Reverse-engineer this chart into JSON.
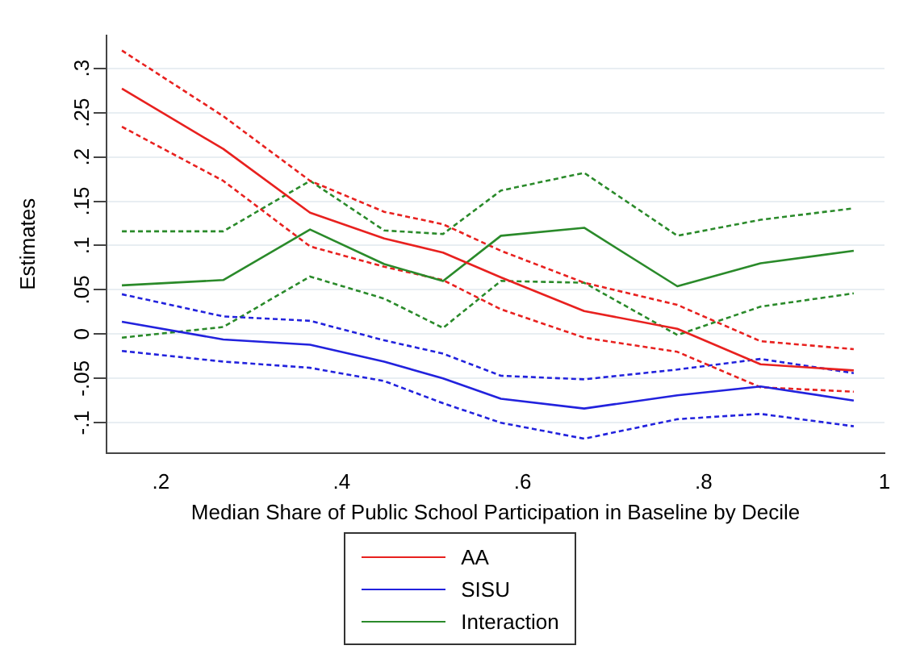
{
  "chart_data": {
    "type": "line",
    "xlabel": "Median Share of Public School Participation in Baseline by Decile",
    "ylabel": "Estimates",
    "x": [
      0.157,
      0.269,
      0.365,
      0.447,
      0.512,
      0.576,
      0.668,
      0.771,
      0.863,
      0.966
    ],
    "series": [
      {
        "name": "AA",
        "color": "#e8211f",
        "values": [
          0.277,
          0.209,
          0.137,
          0.108,
          0.092,
          0.064,
          0.026,
          0.006,
          -0.034,
          -0.041
        ]
      },
      {
        "name": "SISU",
        "color": "#2222dd",
        "values": [
          0.014,
          -0.006,
          -0.012,
          -0.031,
          -0.05,
          -0.073,
          -0.084,
          -0.069,
          -0.059,
          -0.075
        ]
      },
      {
        "name": "Interaction",
        "color": "#2a8a2a",
        "values": [
          0.055,
          0.061,
          0.118,
          0.079,
          0.06,
          0.111,
          0.12,
          0.054,
          0.08,
          0.094
        ]
      },
      {
        "color": "#e8211f",
        "line_style": "dashed",
        "values": [
          0.234,
          0.173,
          0.099,
          0.076,
          0.061,
          0.028,
          -0.004,
          -0.02,
          -0.06,
          -0.065
        ]
      },
      {
        "color": "#e8211f",
        "line_style": "dashed",
        "values": [
          0.32,
          0.246,
          0.173,
          0.138,
          0.124,
          0.094,
          0.058,
          0.033,
          -0.008,
          -0.017
        ]
      },
      {
        "color": "#2222dd",
        "line_style": "dashed",
        "values": [
          -0.019,
          -0.031,
          -0.038,
          -0.053,
          -0.078,
          -0.1,
          -0.118,
          -0.096,
          -0.09,
          -0.104
        ]
      },
      {
        "color": "#2222dd",
        "line_style": "dashed",
        "values": [
          0.045,
          0.02,
          0.015,
          -0.007,
          -0.022,
          -0.047,
          -0.051,
          -0.04,
          -0.028,
          -0.044
        ]
      },
      {
        "color": "#2a8a2a",
        "line_style": "dashed",
        "values": [
          -0.004,
          0.008,
          0.065,
          0.04,
          0.007,
          0.06,
          0.058,
          -0.001,
          0.031,
          0.046
        ]
      },
      {
        "color": "#2a8a2a",
        "line_style": "dashed",
        "values": [
          0.116,
          0.116,
          0.173,
          0.117,
          0.113,
          0.162,
          0.182,
          0.111,
          0.129,
          0.142
        ]
      }
    ],
    "xlim": [
      0.14,
      1.0
    ],
    "xticks": [
      {
        "value": 0.2,
        "label": ".2"
      },
      {
        "value": 0.4,
        "label": ".4"
      },
      {
        "value": 0.6,
        "label": ".6"
      },
      {
        "value": 0.8,
        "label": ".8"
      },
      1
    ],
    "ylim": [
      -0.134,
      0.337
    ],
    "yticks": [
      {
        "value": -0.1,
        "label": "-.1"
      },
      {
        "value": -0.05,
        "label": "-.05"
      },
      0,
      {
        "value": 0.05,
        "label": ".05"
      },
      {
        "value": 0.1,
        "label": ".1"
      },
      {
        "value": 0.15,
        "label": ".15"
      },
      {
        "value": 0.2,
        "label": ".2"
      },
      {
        "value": 0.25,
        "label": ".25"
      },
      {
        "value": 0.3,
        "label": ".3"
      }
    ],
    "grid": "y",
    "legend": "bottom",
    "marker": "none",
    "line_style": "solid"
  }
}
